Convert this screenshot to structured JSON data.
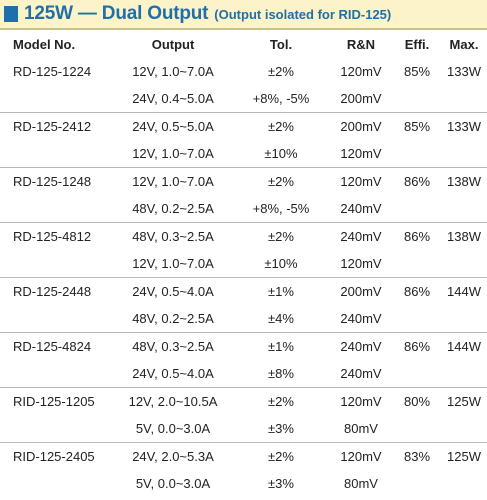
{
  "header": {
    "title": "125W — Dual Output",
    "subtitle": "(Output isolated for RID-125)"
  },
  "columns": [
    "Model No.",
    "Output",
    "Tol.",
    "R&N",
    "Effi.",
    "Max."
  ],
  "rows": [
    {
      "model": "RD-125-1224",
      "output": "12V, 1.0~7.0A",
      "tol": "±2%",
      "rn": "120mV",
      "effi": "85%",
      "max": "133W"
    },
    {
      "model": "",
      "output": "24V, 0.4~5.0A",
      "tol": "+8%, -5%",
      "rn": "200mV",
      "effi": "",
      "max": ""
    },
    {
      "model": "RD-125-2412",
      "output": "24V, 0.5~5.0A",
      "tol": "±2%",
      "rn": "200mV",
      "effi": "85%",
      "max": "133W"
    },
    {
      "model": "",
      "output": "12V, 1.0~7.0A",
      "tol": "±10%",
      "rn": "120mV",
      "effi": "",
      "max": ""
    },
    {
      "model": "RD-125-1248",
      "output": "12V, 1.0~7.0A",
      "tol": "±2%",
      "rn": "120mV",
      "effi": "86%",
      "max": "138W"
    },
    {
      "model": "",
      "output": "48V, 0.2~2.5A",
      "tol": "+8%, -5%",
      "rn": "240mV",
      "effi": "",
      "max": ""
    },
    {
      "model": "RD-125-4812",
      "output": "48V, 0.3~2.5A",
      "tol": "±2%",
      "rn": "240mV",
      "effi": "86%",
      "max": "138W"
    },
    {
      "model": "",
      "output": "12V, 1.0~7.0A",
      "tol": "±10%",
      "rn": "120mV",
      "effi": "",
      "max": ""
    },
    {
      "model": "RD-125-2448",
      "output": "24V, 0.5~4.0A",
      "tol": "±1%",
      "rn": "200mV",
      "effi": "86%",
      "max": "144W"
    },
    {
      "model": "",
      "output": "48V, 0.2~2.5A",
      "tol": "±4%",
      "rn": "240mV",
      "effi": "",
      "max": ""
    },
    {
      "model": "RD-125-4824",
      "output": "48V, 0.3~2.5A",
      "tol": "±1%",
      "rn": "240mV",
      "effi": "86%",
      "max": "144W"
    },
    {
      "model": "",
      "output": "24V, 0.5~4.0A",
      "tol": "±8%",
      "rn": "240mV",
      "effi": "",
      "max": ""
    },
    {
      "model": "RID-125-1205",
      "output": "12V, 2.0~10.5A",
      "tol": "±2%",
      "rn": "120mV",
      "effi": "80%",
      "max": "125W"
    },
    {
      "model": "",
      "output": "5V, 0.0~3.0A",
      "tol": "±3%",
      "rn": "80mV",
      "effi": "",
      "max": ""
    },
    {
      "model": "RID-125-2405",
      "output": "24V, 2.0~5.3A",
      "tol": "±2%",
      "rn": "120mV",
      "effi": "83%",
      "max": "125W"
    },
    {
      "model": "",
      "output": "5V, 0.0~3.0A",
      "tol": "±3%",
      "rn": "80mV",
      "effi": "",
      "max": ""
    }
  ]
}
